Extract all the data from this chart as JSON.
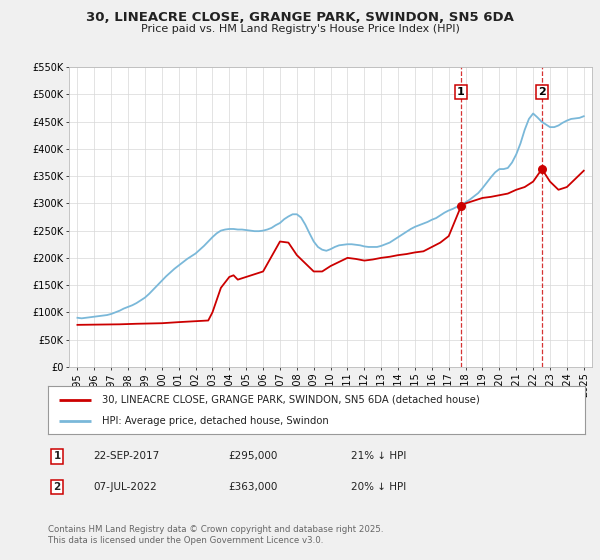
{
  "title": "30, LINEACRE CLOSE, GRANGE PARK, SWINDON, SN5 6DA",
  "subtitle": "Price paid vs. HM Land Registry's House Price Index (HPI)",
  "hpi_label": "HPI: Average price, detached house, Swindon",
  "property_label": "30, LINEACRE CLOSE, GRANGE PARK, SWINDON, SN5 6DA (detached house)",
  "footer": "Contains HM Land Registry data © Crown copyright and database right 2025.\nThis data is licensed under the Open Government Licence v3.0.",
  "marker1_date": "22-SEP-2017",
  "marker1_price": 295000,
  "marker1_hpi_pct": "21% ↓ HPI",
  "marker1_x": 2017.73,
  "marker2_date": "07-JUL-2022",
  "marker2_price": 363000,
  "marker2_hpi_pct": "20% ↓ HPI",
  "marker2_x": 2022.52,
  "hpi_color": "#7ab8d9",
  "property_color": "#cc0000",
  "dashed_line_color": "#cc0000",
  "background_color": "#f0f0f0",
  "plot_bg_color": "#ffffff",
  "legend_bg_color": "#ffffff",
  "ylim": [
    0,
    550000
  ],
  "xlim_left": 1994.5,
  "xlim_right": 2025.5,
  "yticks": [
    0,
    50000,
    100000,
    150000,
    200000,
    250000,
    300000,
    350000,
    400000,
    450000,
    500000,
    550000
  ],
  "ytick_labels": [
    "£0",
    "£50K",
    "£100K",
    "£150K",
    "£200K",
    "£250K",
    "£300K",
    "£350K",
    "£400K",
    "£450K",
    "£500K",
    "£550K"
  ],
  "xticks": [
    1995,
    1996,
    1997,
    1998,
    1999,
    2000,
    2001,
    2002,
    2003,
    2004,
    2005,
    2006,
    2007,
    2008,
    2009,
    2010,
    2011,
    2012,
    2013,
    2014,
    2015,
    2016,
    2017,
    2018,
    2019,
    2020,
    2021,
    2022,
    2023,
    2024,
    2025
  ],
  "hpi_x": [
    1995.0,
    1995.25,
    1995.5,
    1995.75,
    1996.0,
    1996.25,
    1996.5,
    1996.75,
    1997.0,
    1997.25,
    1997.5,
    1997.75,
    1998.0,
    1998.25,
    1998.5,
    1998.75,
    1999.0,
    1999.25,
    1999.5,
    1999.75,
    2000.0,
    2000.25,
    2000.5,
    2000.75,
    2001.0,
    2001.25,
    2001.5,
    2001.75,
    2002.0,
    2002.25,
    2002.5,
    2002.75,
    2003.0,
    2003.25,
    2003.5,
    2003.75,
    2004.0,
    2004.25,
    2004.5,
    2004.75,
    2005.0,
    2005.25,
    2005.5,
    2005.75,
    2006.0,
    2006.25,
    2006.5,
    2006.75,
    2007.0,
    2007.25,
    2007.5,
    2007.75,
    2008.0,
    2008.25,
    2008.5,
    2008.75,
    2009.0,
    2009.25,
    2009.5,
    2009.75,
    2010.0,
    2010.25,
    2010.5,
    2010.75,
    2011.0,
    2011.25,
    2011.5,
    2011.75,
    2012.0,
    2012.25,
    2012.5,
    2012.75,
    2013.0,
    2013.25,
    2013.5,
    2013.75,
    2014.0,
    2014.25,
    2014.5,
    2014.75,
    2015.0,
    2015.25,
    2015.5,
    2015.75,
    2016.0,
    2016.25,
    2016.5,
    2016.75,
    2017.0,
    2017.25,
    2017.5,
    2017.75,
    2018.0,
    2018.25,
    2018.5,
    2018.75,
    2019.0,
    2019.25,
    2019.5,
    2019.75,
    2020.0,
    2020.25,
    2020.5,
    2020.75,
    2021.0,
    2021.25,
    2021.5,
    2021.75,
    2022.0,
    2022.25,
    2022.5,
    2022.75,
    2023.0,
    2023.25,
    2023.5,
    2023.75,
    2024.0,
    2024.25,
    2024.5,
    2024.75,
    2025.0
  ],
  "hpi_y": [
    90000,
    89000,
    90000,
    91000,
    92000,
    93000,
    94000,
    95000,
    97000,
    100000,
    103000,
    107000,
    110000,
    113000,
    117000,
    122000,
    127000,
    134000,
    142000,
    150000,
    158000,
    166000,
    173000,
    180000,
    186000,
    192000,
    198000,
    203000,
    208000,
    215000,
    222000,
    230000,
    238000,
    245000,
    250000,
    252000,
    253000,
    253000,
    252000,
    252000,
    251000,
    250000,
    249000,
    249000,
    250000,
    252000,
    255000,
    260000,
    264000,
    271000,
    276000,
    280000,
    280000,
    274000,
    261000,
    245000,
    230000,
    220000,
    215000,
    213000,
    216000,
    220000,
    223000,
    224000,
    225000,
    225000,
    224000,
    223000,
    221000,
    220000,
    220000,
    220000,
    222000,
    225000,
    228000,
    233000,
    238000,
    243000,
    248000,
    253000,
    257000,
    260000,
    263000,
    266000,
    270000,
    273000,
    278000,
    283000,
    287000,
    290000,
    294000,
    297000,
    302000,
    307000,
    313000,
    319000,
    328000,
    338000,
    348000,
    357000,
    363000,
    363000,
    365000,
    375000,
    390000,
    410000,
    435000,
    455000,
    465000,
    458000,
    450000,
    445000,
    440000,
    440000,
    443000,
    448000,
    452000,
    455000,
    456000,
    457000,
    460000
  ],
  "property_x": [
    1995.0,
    1997.5,
    1998.5,
    2000.0,
    2001.0,
    2002.75,
    2003.0,
    2003.5,
    2004.0,
    2004.25,
    2004.5,
    2005.0,
    2005.5,
    2006.0,
    2007.0,
    2007.5,
    2008.0,
    2008.5,
    2009.0,
    2009.5,
    2010.0,
    2011.0,
    2011.5,
    2012.0,
    2012.5,
    2013.0,
    2013.5,
    2014.0,
    2014.5,
    2015.0,
    2015.5,
    2016.0,
    2016.5,
    2017.0,
    2017.73,
    2018.0,
    2018.5,
    2019.0,
    2019.5,
    2020.0,
    2020.5,
    2021.0,
    2021.5,
    2022.0,
    2022.52,
    2023.0,
    2023.5,
    2024.0,
    2024.5,
    2025.0
  ],
  "property_y": [
    77000,
    78000,
    79000,
    80000,
    82000,
    85000,
    100000,
    145000,
    165000,
    168000,
    160000,
    165000,
    170000,
    175000,
    230000,
    228000,
    205000,
    190000,
    175000,
    175000,
    185000,
    200000,
    198000,
    195000,
    197000,
    200000,
    202000,
    205000,
    207000,
    210000,
    212000,
    220000,
    228000,
    240000,
    295000,
    300000,
    305000,
    310000,
    312000,
    315000,
    318000,
    325000,
    330000,
    340000,
    363000,
    340000,
    325000,
    330000,
    345000,
    360000
  ]
}
